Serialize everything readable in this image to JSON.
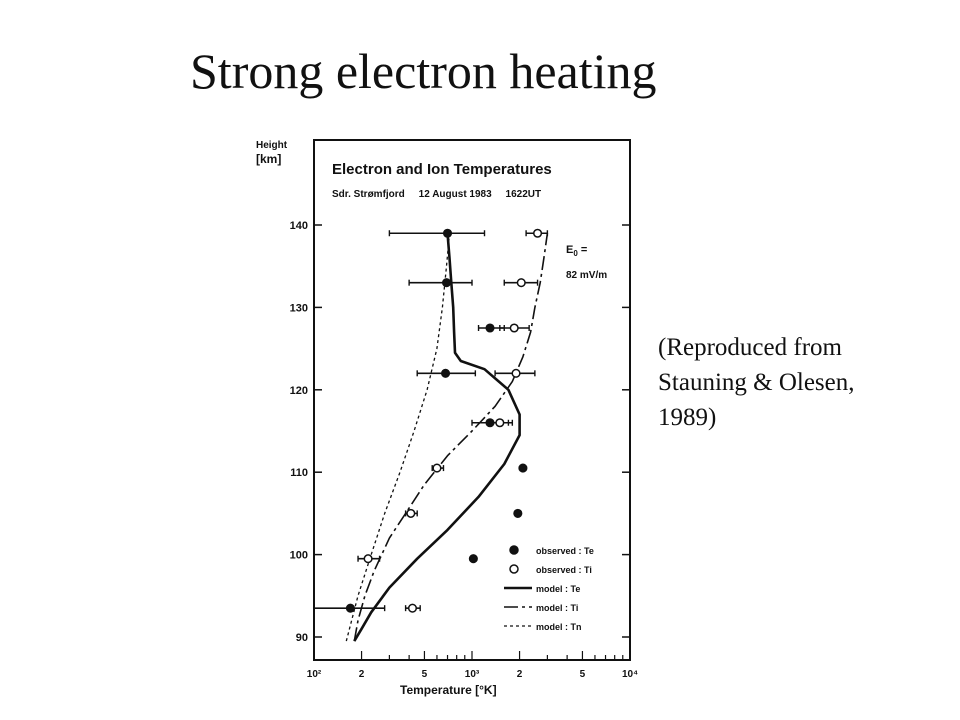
{
  "slide": {
    "title": "Strong electron heating",
    "caption": {
      "line1": "(Reproduced from",
      "line2": "Stauning & Olesen,",
      "line3": "1989)"
    }
  },
  "chart_data": {
    "type": "scatter",
    "title": "Electron and Ion Temperatures",
    "subtitle": "Sdr. Strømfjord     12 August 1983     1622UT",
    "annotation": "E₀ = 82 mV/m",
    "ylabel": "Height [km]",
    "xlabel": "Temperature [°K]",
    "xscale": "log",
    "xlim": [
      100,
      10000
    ],
    "ylim": [
      88,
      148
    ],
    "yticks": [
      90,
      100,
      110,
      120,
      130,
      140
    ],
    "xticks": [
      {
        "value": 100,
        "label": "10²"
      },
      {
        "value": 200,
        "label": "2"
      },
      {
        "value": 500,
        "label": "5"
      },
      {
        "value": 1000,
        "label": "10³"
      },
      {
        "value": 2000,
        "label": "2"
      },
      {
        "value": 5000,
        "label": "5"
      },
      {
        "value": 10000,
        "label": "10⁴"
      }
    ],
    "legend_position": "bottom-right",
    "series": [
      {
        "name": "observed : Te",
        "marker": "filled-circle",
        "points": [
          {
            "h": 139,
            "t": 700,
            "lo": 300,
            "hi": 1200
          },
          {
            "h": 133,
            "t": 690,
            "lo": 400,
            "hi": 1000
          },
          {
            "h": 127.5,
            "t": 1300,
            "lo": 1100,
            "hi": 1600
          },
          {
            "h": 122,
            "t": 680,
            "lo": 450,
            "hi": 1050
          },
          {
            "h": 116,
            "t": 1300,
            "lo": 1000,
            "hi": 1700
          },
          {
            "h": 110.5,
            "t": 2100,
            "lo": null,
            "hi": null
          },
          {
            "h": 105,
            "t": 1950,
            "lo": null,
            "hi": null
          },
          {
            "h": 99.5,
            "t": 1020,
            "lo": null,
            "hi": null
          },
          {
            "h": 93.5,
            "t": 170,
            "lo": 100,
            "hi": 280
          }
        ]
      },
      {
        "name": "observed : Ti",
        "marker": "open-circle",
        "points": [
          {
            "h": 139,
            "t": 2600,
            "lo": 2200,
            "hi": 3000
          },
          {
            "h": 133,
            "t": 2050,
            "lo": 1600,
            "hi": 2600
          },
          {
            "h": 127.5,
            "t": 1850,
            "lo": 1500,
            "hi": 2300
          },
          {
            "h": 122,
            "t": 1900,
            "lo": 1400,
            "hi": 2500
          },
          {
            "h": 116,
            "t": 1500,
            "lo": 1250,
            "hi": 1800
          },
          {
            "h": 110.5,
            "t": 600,
            "lo": 560,
            "hi": 660
          },
          {
            "h": 105,
            "t": 410,
            "lo": 380,
            "hi": 450
          },
          {
            "h": 99.5,
            "t": 220,
            "lo": 190,
            "hi": 260
          },
          {
            "h": 93.5,
            "t": 420,
            "lo": 380,
            "hi": 470
          }
        ]
      },
      {
        "name": "model : Te",
        "line": "solid",
        "points": [
          [
            180,
            89.5
          ],
          [
            200,
            91
          ],
          [
            230,
            93
          ],
          [
            300,
            96
          ],
          [
            450,
            99.5
          ],
          [
            700,
            103
          ],
          [
            1100,
            107
          ],
          [
            1600,
            111
          ],
          [
            2000,
            114.5
          ],
          [
            2000,
            117
          ],
          [
            1700,
            120
          ],
          [
            1200,
            122.5
          ],
          [
            850,
            123.5
          ],
          [
            780,
            124.5
          ],
          [
            770,
            127
          ],
          [
            760,
            130
          ],
          [
            740,
            133
          ],
          [
            720,
            136
          ],
          [
            700,
            139
          ]
        ]
      },
      {
        "name": "model : Ti",
        "line": "long-dash",
        "points": [
          [
            180,
            89.5
          ],
          [
            190,
            92
          ],
          [
            210,
            95
          ],
          [
            240,
            98
          ],
          [
            300,
            102
          ],
          [
            380,
            105
          ],
          [
            500,
            108.5
          ],
          [
            700,
            112
          ],
          [
            1000,
            115
          ],
          [
            1400,
            118
          ],
          [
            1800,
            121
          ],
          [
            2100,
            124
          ],
          [
            2350,
            127
          ],
          [
            2500,
            130
          ],
          [
            2700,
            133
          ],
          [
            2850,
            136
          ],
          [
            3000,
            139
          ]
        ]
      },
      {
        "name": "model : Tn",
        "line": "short-dash",
        "points": [
          [
            160,
            89.5
          ],
          [
            190,
            95
          ],
          [
            230,
            100
          ],
          [
            280,
            105
          ],
          [
            350,
            110
          ],
          [
            430,
            115
          ],
          [
            520,
            120
          ],
          [
            600,
            125
          ],
          [
            650,
            130
          ],
          [
            690,
            135
          ],
          [
            720,
            139
          ]
        ]
      }
    ]
  }
}
